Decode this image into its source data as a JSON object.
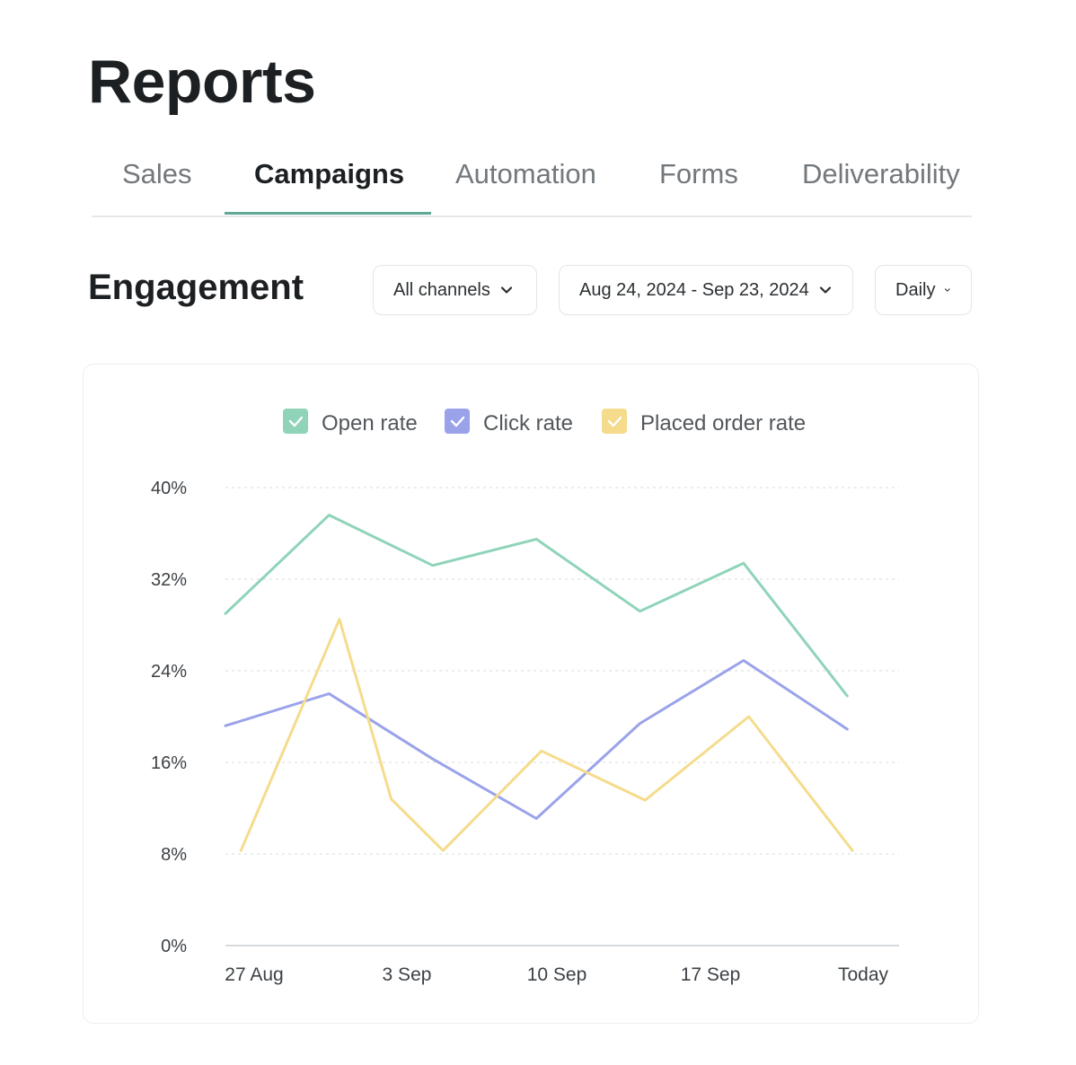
{
  "page": {
    "title": "Reports"
  },
  "tabs": [
    {
      "label": "Sales",
      "active": false
    },
    {
      "label": "Campaigns",
      "active": true
    },
    {
      "label": "Automation",
      "active": false
    },
    {
      "label": "Forms",
      "active": false
    },
    {
      "label": "Deliverability",
      "active": false
    }
  ],
  "engagement": {
    "title": "Engagement",
    "filters": {
      "channel": "All channels",
      "date_range": "Aug 24, 2024 - Sep 23, 2024",
      "granularity": "Daily"
    }
  },
  "colors": {
    "open_rate": "#8fd4b8",
    "click_rate": "#9aa3ea",
    "placed_order_rate": "#f5dc8c",
    "accent": "#5fa898"
  },
  "chart_data": {
    "type": "line",
    "title": "",
    "xlabel": "",
    "ylabel": "",
    "x_tick_labels": [
      "27 Aug",
      "3 Sep",
      "10 Sep",
      "17 Sep",
      "Today"
    ],
    "y_tick_labels": [
      "0%",
      "8%",
      "16%",
      "24%",
      "32%",
      "40%"
    ],
    "ylim": [
      0,
      40
    ],
    "grid": true,
    "legend_position": "top-center",
    "series": [
      {
        "name": "Open rate",
        "color": "#8fd4b8",
        "points": [
          [
            0,
            29
          ],
          [
            2,
            37.6
          ],
          [
            4,
            33.2
          ],
          [
            6,
            35.5
          ],
          [
            8,
            29.2
          ],
          [
            10,
            33.4
          ],
          [
            12,
            21.8
          ]
        ]
      },
      {
        "name": "Click rate",
        "color": "#9aa3ea",
        "points": [
          [
            0,
            19.2
          ],
          [
            2,
            22
          ],
          [
            4,
            16.3
          ],
          [
            6,
            11.1
          ],
          [
            8,
            19.4
          ],
          [
            10,
            24.9
          ],
          [
            12,
            18.9
          ]
        ]
      },
      {
        "name": "Placed order rate",
        "color": "#f5dc8c",
        "points": [
          [
            0.3,
            8.3
          ],
          [
            2.2,
            28.5
          ],
          [
            3.2,
            12.8
          ],
          [
            4.2,
            8.3
          ],
          [
            6.1,
            17
          ],
          [
            8.1,
            12.7
          ],
          [
            10.1,
            20
          ],
          [
            12.1,
            8.3
          ]
        ]
      }
    ]
  }
}
